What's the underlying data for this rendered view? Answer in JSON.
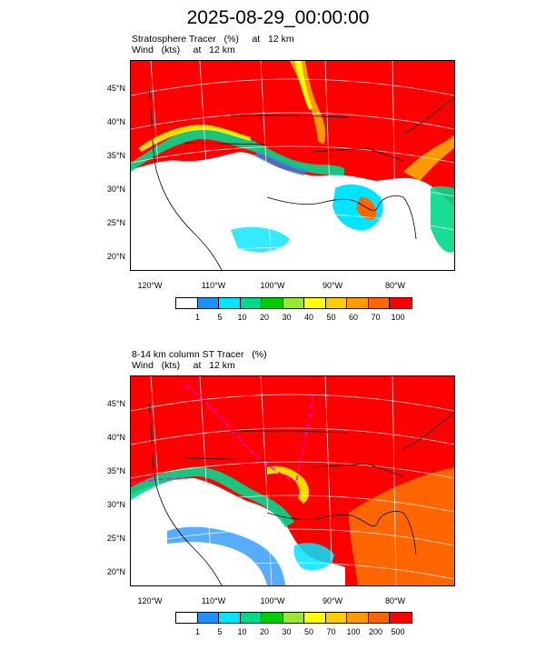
{
  "title": "2025-08-29_00:00:00",
  "panels": [
    {
      "label_line1": "Stratosphere Tracer   (%)     at   12 km",
      "label_line2": "Wind   (kts)     at   12 km",
      "lat_labels": [
        "45°N",
        "40°N",
        "35°N",
        "30°N",
        "25°N",
        "20°N"
      ],
      "lon_labels": [
        "120°W",
        "110°W",
        "100°W",
        "90°W",
        "80°W"
      ],
      "colorbar_labels": [
        "1",
        "5",
        "10",
        "20",
        "30",
        "40",
        "50",
        "60",
        "70",
        "100"
      ]
    },
    {
      "label_line1": "8-14 km column ST Tracer   (%)",
      "label_line2": "Wind   (kts)     at   12 km",
      "lat_labels": [
        "45°N",
        "40°N",
        "35°N",
        "30°N",
        "25°N",
        "20°N"
      ],
      "lon_labels": [
        "120°W",
        "110°W",
        "100°W",
        "90°W",
        "80°W"
      ],
      "colorbar_labels": [
        "1",
        "5",
        "10",
        "20",
        "30",
        "50",
        "70",
        "100",
        "200",
        "500"
      ]
    }
  ],
  "colorbar_colors": [
    "#ffffff",
    "#1e90ff",
    "#00e5ff",
    "#00d98c",
    "#00cc00",
    "#99e633",
    "#ffff00",
    "#ffcc00",
    "#ff9900",
    "#ff6600",
    "#ff0000"
  ]
}
